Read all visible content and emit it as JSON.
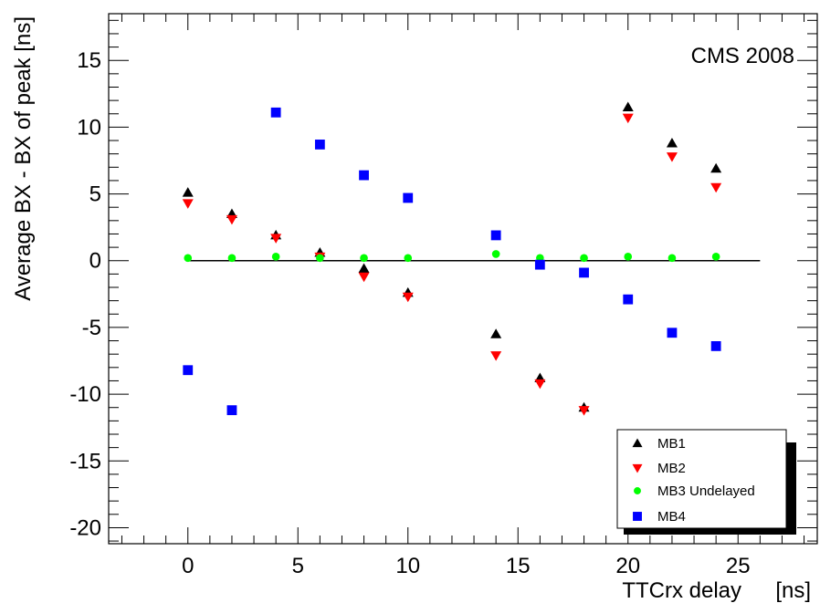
{
  "chart_data": {
    "type": "scatter",
    "xlabel": "TTCrx delay",
    "xunit": "[ns]",
    "ylabel": "Average BX - BX of peak [ns]",
    "xlim": [
      -3.6,
      28.6
    ],
    "ylim": [
      -21.2,
      18.5
    ],
    "x_ticks": [
      0,
      5,
      10,
      15,
      20,
      25
    ],
    "y_ticks": [
      -20,
      -15,
      -10,
      -5,
      0,
      5,
      10,
      15
    ],
    "annotation": "CMS 2008",
    "reference_line": {
      "y": 0,
      "x_from": 0,
      "x_to": 26
    },
    "series": [
      {
        "name": "MB1",
        "marker": "triangle-up",
        "color": "#000000",
        "x": [
          0,
          2,
          4,
          6,
          8,
          10,
          14,
          16,
          18,
          20,
          22,
          24
        ],
        "y": [
          5.1,
          3.5,
          1.9,
          0.6,
          -0.6,
          -2.4,
          -5.5,
          -8.8,
          -11.0,
          11.5,
          8.8,
          6.9
        ]
      },
      {
        "name": "MB2",
        "marker": "triangle-down",
        "color": "#ff0000",
        "x": [
          0,
          2,
          4,
          6,
          8,
          10,
          14,
          16,
          18,
          20,
          22,
          24
        ],
        "y": [
          4.3,
          3.1,
          1.7,
          0.3,
          -1.2,
          -2.7,
          -7.1,
          -9.2,
          -11.2,
          10.7,
          7.8,
          5.5
        ]
      },
      {
        "name": "MB3 Undelayed",
        "marker": "circle",
        "color": "#00ff00",
        "x": [
          0,
          2,
          4,
          6,
          8,
          10,
          14,
          16,
          18,
          20,
          22,
          24
        ],
        "y": [
          0.2,
          0.2,
          0.3,
          0.2,
          0.2,
          0.2,
          0.5,
          0.2,
          0.2,
          0.3,
          0.2,
          0.3
        ]
      },
      {
        "name": "MB4",
        "marker": "square",
        "color": "#0000ff",
        "x": [
          0,
          2,
          4,
          6,
          8,
          10,
          14,
          16,
          18,
          20,
          22,
          24
        ],
        "y": [
          -8.2,
          -11.2,
          11.1,
          8.7,
          6.4,
          4.7,
          1.9,
          -0.3,
          -0.9,
          -2.9,
          -5.4,
          -6.4
        ]
      }
    ]
  }
}
